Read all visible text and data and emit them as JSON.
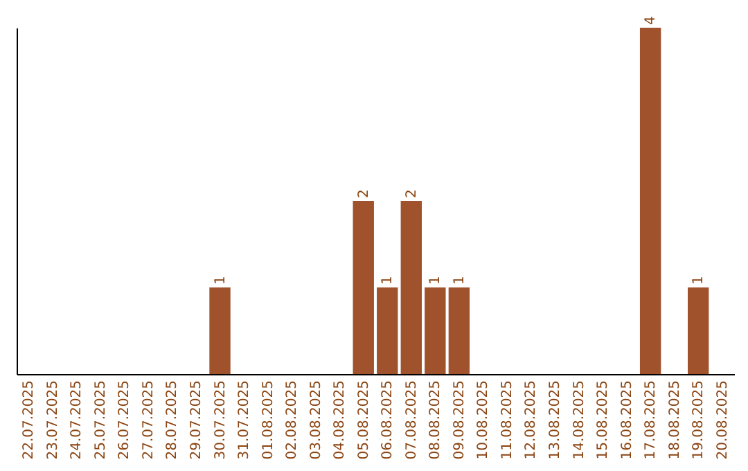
{
  "chart_data": {
    "type": "bar",
    "categories": [
      "22.07.2025",
      "23.07.2025",
      "24.07.2025",
      "25.07.2025",
      "26.07.2025",
      "27.07.2025",
      "28.07.2025",
      "29.07.2025",
      "30.07.2025",
      "31.07.2025",
      "01.08.2025",
      "02.08.2025",
      "03.08.2025",
      "04.08.2025",
      "05.08.2025",
      "06.08.2025",
      "07.08.2025",
      "08.08.2025",
      "09.08.2025",
      "10.08.2025",
      "11.08.2025",
      "12.08.2025",
      "13.08.2025",
      "14.08.2025",
      "15.08.2025",
      "16.08.2025",
      "17.08.2025",
      "18.08.2025",
      "19.08.2025",
      "20.08.2025"
    ],
    "values": [
      null,
      null,
      null,
      null,
      null,
      null,
      null,
      null,
      1,
      null,
      null,
      null,
      null,
      null,
      2,
      1,
      2,
      1,
      1,
      null,
      null,
      null,
      null,
      null,
      null,
      null,
      4,
      null,
      1,
      null
    ],
    "color": "#a0522d",
    "data_labels": true
  }
}
